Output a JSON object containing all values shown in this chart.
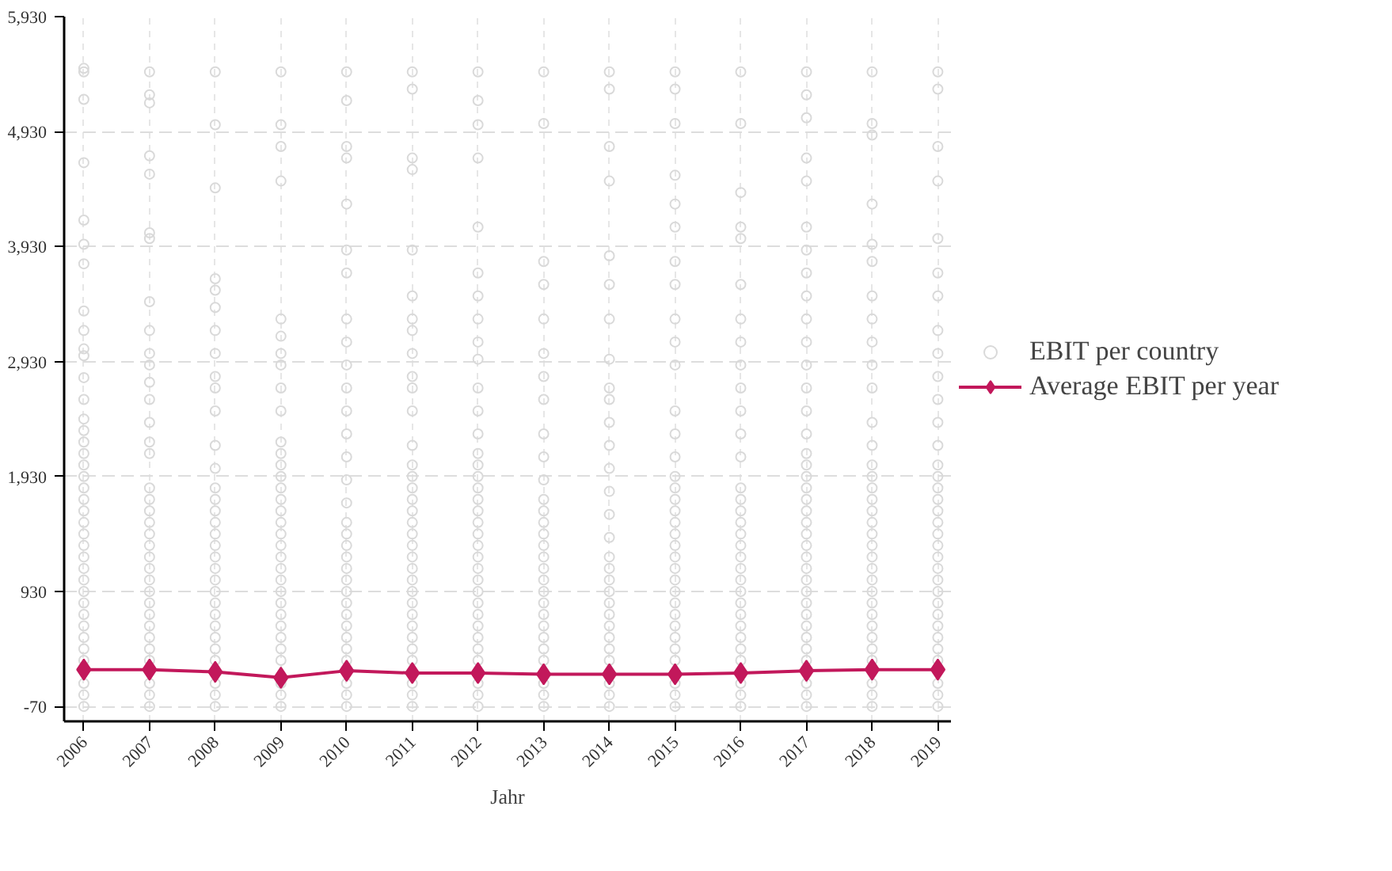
{
  "chart_data": {
    "type": "scatter",
    "xlabel": "Jahr",
    "xlim": [
      2005.7,
      2019.2
    ],
    "xticks": [
      2006,
      2007,
      2008,
      2009,
      2010,
      2011,
      2012,
      2013,
      2014,
      2015,
      2016,
      2017,
      2018,
      2019
    ],
    "ylim": [
      -200,
      5930
    ],
    "yticks": [
      {
        "value": -70,
        "label": "-70"
      },
      {
        "value": 930,
        "label": "930"
      },
      {
        "value": 1930,
        "label": "1,930"
      },
      {
        "value": 2930,
        "label": "2,930"
      },
      {
        "value": 3930,
        "label": "3,930"
      },
      {
        "value": 4930,
        "label": "4,930"
      },
      {
        "value": 5930,
        "label": "5,930"
      }
    ],
    "grid": true,
    "legend": "right",
    "series": [
      {
        "name": "EBIT per country",
        "marker": "circle",
        "color": "#d9d9d9",
        "x": [
          2006,
          2006,
          2006,
          2006,
          2006,
          2006,
          2006,
          2006,
          2006,
          2006,
          2006,
          2006,
          2006,
          2006,
          2006,
          2006,
          2006,
          2006,
          2006,
          2006,
          2006,
          2006,
          2006,
          2006,
          2006,
          2006,
          2006,
          2006,
          2006,
          2006,
          2006,
          2006,
          2006,
          2006,
          2006,
          2006,
          2006,
          2006,
          2007,
          2007,
          2007,
          2007,
          2007,
          2007,
          2007,
          2007,
          2007,
          2007,
          2007,
          2007,
          2007,
          2007,
          2007,
          2007,
          2007,
          2007,
          2007,
          2007,
          2007,
          2007,
          2007,
          2007,
          2007,
          2007,
          2007,
          2007,
          2007,
          2007,
          2007,
          2007,
          2007,
          2007,
          2007,
          2008,
          2008,
          2008,
          2008,
          2008,
          2008,
          2008,
          2008,
          2008,
          2008,
          2008,
          2008,
          2008,
          2008,
          2008,
          2008,
          2008,
          2008,
          2008,
          2008,
          2008,
          2008,
          2008,
          2008,
          2008,
          2008,
          2008,
          2008,
          2008,
          2008,
          2008,
          2008,
          2009,
          2009,
          2009,
          2009,
          2009,
          2009,
          2009,
          2009,
          2009,
          2009,
          2009,
          2009,
          2009,
          2009,
          2009,
          2009,
          2009,
          2009,
          2009,
          2009,
          2009,
          2009,
          2009,
          2009,
          2009,
          2009,
          2009,
          2009,
          2009,
          2009,
          2009,
          2009,
          2009,
          2010,
          2010,
          2010,
          2010,
          2010,
          2010,
          2010,
          2010,
          2010,
          2010,
          2010,
          2010,
          2010,
          2010,
          2010,
          2010,
          2010,
          2010,
          2010,
          2010,
          2010,
          2010,
          2010,
          2010,
          2010,
          2010,
          2010,
          2010,
          2010,
          2010,
          2010,
          2010,
          2011,
          2011,
          2011,
          2011,
          2011,
          2011,
          2011,
          2011,
          2011,
          2011,
          2011,
          2011,
          2011,
          2011,
          2011,
          2011,
          2011,
          2011,
          2011,
          2011,
          2011,
          2011,
          2011,
          2011,
          2011,
          2011,
          2011,
          2011,
          2011,
          2011,
          2011,
          2011,
          2011,
          2011,
          2012,
          2012,
          2012,
          2012,
          2012,
          2012,
          2012,
          2012,
          2012,
          2012,
          2012,
          2012,
          2012,
          2012,
          2012,
          2012,
          2012,
          2012,
          2012,
          2012,
          2012,
          2012,
          2012,
          2012,
          2012,
          2012,
          2012,
          2012,
          2012,
          2012,
          2012,
          2012,
          2012,
          2012,
          2012,
          2013,
          2013,
          2013,
          2013,
          2013,
          2013,
          2013,
          2013,
          2013,
          2013,
          2013,
          2013,
          2013,
          2013,
          2013,
          2013,
          2013,
          2013,
          2013,
          2013,
          2013,
          2013,
          2013,
          2013,
          2013,
          2013,
          2013,
          2013,
          2013,
          2014,
          2014,
          2014,
          2014,
          2014,
          2014,
          2014,
          2014,
          2014,
          2014,
          2014,
          2014,
          2014,
          2014,
          2014,
          2014,
          2014,
          2014,
          2014,
          2014,
          2014,
          2014,
          2014,
          2014,
          2014,
          2014,
          2014,
          2014,
          2014,
          2015,
          2015,
          2015,
          2015,
          2015,
          2015,
          2015,
          2015,
          2015,
          2015,
          2015,
          2015,
          2015,
          2015,
          2015,
          2015,
          2015,
          2015,
          2015,
          2015,
          2015,
          2015,
          2015,
          2015,
          2015,
          2015,
          2015,
          2015,
          2015,
          2015,
          2015,
          2015,
          2015,
          2015,
          2016,
          2016,
          2016,
          2016,
          2016,
          2016,
          2016,
          2016,
          2016,
          2016,
          2016,
          2016,
          2016,
          2016,
          2016,
          2016,
          2016,
          2016,
          2016,
          2016,
          2016,
          2016,
          2016,
          2016,
          2016,
          2016,
          2016,
          2016,
          2016,
          2016,
          2016,
          2016,
          2017,
          2017,
          2017,
          2017,
          2017,
          2017,
          2017,
          2017,
          2017,
          2017,
          2017,
          2017,
          2017,
          2017,
          2017,
          2017,
          2017,
          2017,
          2017,
          2017,
          2017,
          2017,
          2017,
          2017,
          2017,
          2017,
          2017,
          2017,
          2017,
          2017,
          2017,
          2017,
          2017,
          2017,
          2017,
          2017,
          2017,
          2018,
          2018,
          2018,
          2018,
          2018,
          2018,
          2018,
          2018,
          2018,
          2018,
          2018,
          2018,
          2018,
          2018,
          2018,
          2018,
          2018,
          2018,
          2018,
          2018,
          2018,
          2018,
          2018,
          2018,
          2018,
          2018,
          2018,
          2018,
          2018,
          2018,
          2018,
          2018,
          2018,
          2018,
          2019,
          2019,
          2019,
          2019,
          2019,
          2019,
          2019,
          2019,
          2019,
          2019,
          2019,
          2019,
          2019,
          2019,
          2019,
          2019,
          2019,
          2019,
          2019,
          2019,
          2019,
          2019,
          2019,
          2019,
          2019,
          2019,
          2019,
          2019,
          2019,
          2019,
          2019,
          2019,
          2019,
          2019
        ],
        "values": [
          -70,
          30,
          130,
          330,
          430,
          530,
          630,
          730,
          830,
          930,
          1030,
          1130,
          1230,
          1330,
          1430,
          1530,
          1630,
          1730,
          1830,
          1930,
          2030,
          2130,
          2230,
          2330,
          2430,
          2600,
          2790,
          2980,
          3040,
          3200,
          3370,
          3780,
          3950,
          4160,
          4660,
          5210,
          5450,
          5480,
          -70,
          30,
          130,
          330,
          430,
          530,
          630,
          730,
          830,
          930,
          1030,
          1130,
          1230,
          1330,
          1430,
          1530,
          1630,
          1730,
          1830,
          2130,
          2230,
          2400,
          2600,
          2750,
          2900,
          3000,
          3200,
          3450,
          4000,
          4050,
          4560,
          4720,
          5180,
          5250,
          5450,
          -70,
          30,
          130,
          330,
          430,
          530,
          630,
          730,
          830,
          930,
          1030,
          1130,
          1230,
          1330,
          1430,
          1530,
          1630,
          1730,
          1830,
          2000,
          2200,
          2500,
          2700,
          2800,
          3000,
          3200,
          3400,
          3550,
          3650,
          4440,
          4990,
          5450,
          -70,
          30,
          130,
          330,
          430,
          530,
          630,
          730,
          830,
          930,
          1030,
          1130,
          1230,
          1330,
          1430,
          1530,
          1630,
          1730,
          1830,
          1930,
          2030,
          2130,
          2230,
          2500,
          2700,
          2900,
          3000,
          3150,
          3300,
          4500,
          4800,
          4990,
          5450,
          -70,
          30,
          130,
          330,
          430,
          530,
          630,
          730,
          830,
          930,
          1030,
          1130,
          1230,
          1330,
          1430,
          1530,
          1700,
          1900,
          2100,
          2300,
          2500,
          2700,
          2900,
          3100,
          3300,
          3700,
          3900,
          4300,
          4700,
          4800,
          5200,
          5450,
          -70,
          30,
          130,
          330,
          430,
          530,
          630,
          730,
          830,
          930,
          1030,
          1130,
          1230,
          1330,
          1430,
          1530,
          1630,
          1730,
          1830,
          1930,
          2030,
          2200,
          2500,
          2700,
          2800,
          3000,
          3200,
          3300,
          3500,
          3900,
          4600,
          4700,
          5300,
          5450,
          -70,
          30,
          130,
          330,
          430,
          530,
          630,
          730,
          830,
          930,
          1030,
          1130,
          1230,
          1330,
          1430,
          1530,
          1630,
          1730,
          1830,
          1930,
          2030,
          2130,
          2300,
          2500,
          2700,
          2950,
          3100,
          3300,
          3500,
          3700,
          4100,
          4700,
          4990,
          5200,
          5450,
          -70,
          30,
          130,
          330,
          430,
          530,
          630,
          730,
          830,
          930,
          1030,
          1130,
          1230,
          1330,
          1430,
          1530,
          1630,
          1730,
          1900,
          2100,
          2300,
          2600,
          2800,
          3000,
          3300,
          3600,
          3800,
          5000,
          5450,
          -70,
          30,
          130,
          330,
          430,
          530,
          630,
          730,
          830,
          930,
          1030,
          1130,
          1230,
          1400,
          1600,
          1800,
          2000,
          2200,
          2400,
          2600,
          2700,
          2950,
          3300,
          3600,
          3850,
          4500,
          4800,
          5300,
          5450,
          -70,
          30,
          130,
          330,
          430,
          530,
          630,
          730,
          830,
          930,
          1030,
          1130,
          1230,
          1330,
          1430,
          1530,
          1630,
          1730,
          1830,
          1930,
          2100,
          2300,
          2500,
          2900,
          3100,
          3300,
          3600,
          3800,
          4100,
          4300,
          4550,
          5000,
          5300,
          5450,
          -70,
          30,
          130,
          330,
          430,
          530,
          630,
          730,
          830,
          930,
          1030,
          1130,
          1230,
          1330,
          1430,
          1530,
          1630,
          1730,
          1830,
          2100,
          2300,
          2500,
          2700,
          2900,
          3100,
          3300,
          3600,
          4000,
          4100,
          4400,
          5000,
          5450,
          -70,
          30,
          130,
          330,
          430,
          530,
          630,
          730,
          830,
          930,
          1030,
          1130,
          1230,
          1330,
          1430,
          1530,
          1630,
          1730,
          1830,
          1930,
          2030,
          2130,
          2300,
          2500,
          2700,
          2900,
          3100,
          3300,
          3500,
          3700,
          3900,
          4100,
          4500,
          4700,
          5050,
          5250,
          5450,
          -70,
          30,
          130,
          330,
          430,
          530,
          630,
          730,
          830,
          930,
          1030,
          1130,
          1230,
          1330,
          1430,
          1530,
          1630,
          1730,
          1830,
          1930,
          2030,
          2200,
          2400,
          2700,
          2900,
          3100,
          3300,
          3500,
          3800,
          3950,
          4300,
          4900,
          5000,
          5450,
          -70,
          30,
          130,
          330,
          430,
          530,
          630,
          730,
          830,
          930,
          1030,
          1130,
          1230,
          1330,
          1430,
          1530,
          1630,
          1730,
          1830,
          1930,
          2030,
          2200,
          2400,
          2600,
          2800,
          3000,
          3200,
          3500,
          3700,
          4000,
          4500,
          4800,
          5300,
          5450
        ]
      },
      {
        "name": "Average EBIT per year",
        "type": "line",
        "marker": "diamond",
        "line_style": "solid",
        "color": "#c2185b",
        "x": [
          2006,
          2007,
          2008,
          2009,
          2010,
          2011,
          2012,
          2013,
          2014,
          2015,
          2016,
          2017,
          2018,
          2019
        ],
        "values": [
          250,
          250,
          230,
          180,
          240,
          220,
          220,
          210,
          210,
          210,
          220,
          240,
          250,
          250
        ]
      }
    ]
  }
}
